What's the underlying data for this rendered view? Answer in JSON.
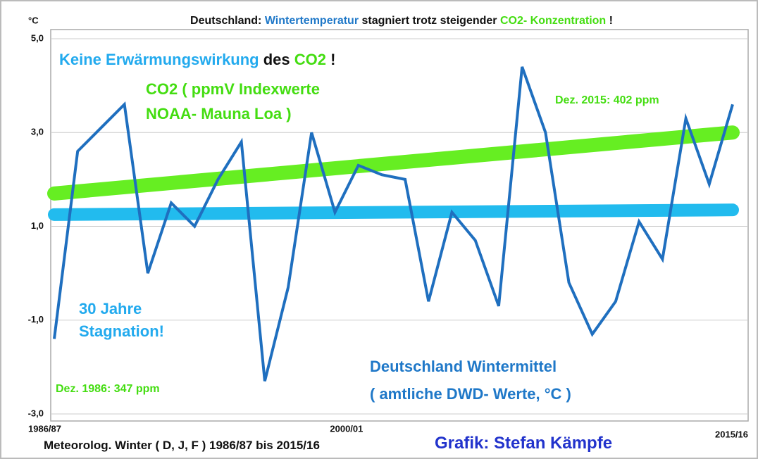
{
  "chart_data": {
    "type": "line",
    "unit_label": "°C",
    "title_parts": [
      {
        "text": "Deutschland: ",
        "color": "#111111"
      },
      {
        "text": "Wintertemperatur",
        "color": "#1f78c8"
      },
      {
        "text": " stagniert trotz steigender ",
        "color": "#111111"
      },
      {
        "text": "CO2- Konzentration",
        "color": "#44dd11"
      },
      {
        "text": " !",
        "color": "#111111"
      }
    ],
    "categories": [
      "1986/87",
      null,
      null,
      null,
      null,
      null,
      null,
      null,
      null,
      null,
      null,
      null,
      null,
      null,
      "2000/01",
      null,
      null,
      null,
      null,
      null,
      null,
      null,
      null,
      null,
      null,
      null,
      null,
      null,
      null,
      "2015/16"
    ],
    "series": [
      {
        "color": "#1f6fbf",
        "values": [
          -1.4,
          2.6,
          3.1,
          3.6,
          0.0,
          1.5,
          1.0,
          2.0,
          2.8,
          -2.3,
          -0.3,
          3.0,
          1.3,
          2.3,
          2.1,
          2.0,
          -0.6,
          1.3,
          0.7,
          -0.7,
          4.4,
          3.0,
          -0.2,
          -1.3,
          -0.6,
          1.1,
          0.3,
          3.3,
          1.9,
          3.6
        ]
      }
    ],
    "trendlines": [
      {
        "color": "#66ee22",
        "start": 1.7,
        "end": 3.0
      },
      {
        "color": "#22bbee",
        "start": 1.25,
        "end": 1.35
      }
    ],
    "ylim": [
      -3,
      5
    ],
    "yticks": [
      {
        "value": -3,
        "label": "-3,0"
      },
      {
        "value": -1,
        "label": "-1,0"
      },
      {
        "value": 1,
        "label": "1,0"
      },
      {
        "value": 3,
        "label": "3,0"
      },
      {
        "value": 5,
        "label": "5,0"
      }
    ],
    "grid": true,
    "annotations": [
      [
        {
          "text": "Keine Erwärmungswirkung ",
          "color": "#22aaee"
        },
        {
          "text": "des ",
          "color": "#111111"
        },
        {
          "text": "CO2",
          "color": "#44dd11"
        },
        {
          "text": " !",
          "color": "#111111"
        }
      ],
      [
        {
          "text": "CO2 ( ppmV Indexwerte",
          "color": "#44dd11"
        }
      ],
      [
        {
          "text": "NOAA- Mauna Loa )",
          "color": "#44dd11"
        }
      ],
      [
        {
          "text": "Dez. 2015: 402 ppm",
          "color": "#44dd11"
        }
      ],
      [
        {
          "text": "30 Jahre",
          "color": "#22aaee"
        }
      ],
      [
        {
          "text": "Stagnation!",
          "color": "#22aaee"
        }
      ],
      [
        {
          "text": "Dez. 1986: 347 ppm",
          "color": "#44dd11"
        }
      ],
      [
        {
          "text": "Deutschland Wintermittel",
          "color": "#1f78c8"
        }
      ],
      [
        {
          "text": "( amtliche DWD- Werte, °C  )",
          "color": "#1f78c8"
        }
      ],
      [
        {
          "text": "Meteorolog. Winter ( D, J, F ) 1986/87 bis 2015/16",
          "color": "#111111"
        }
      ],
      [
        {
          "text": "Grafik: Stefan Kämpfe",
          "color": "#2233cc"
        }
      ]
    ]
  }
}
